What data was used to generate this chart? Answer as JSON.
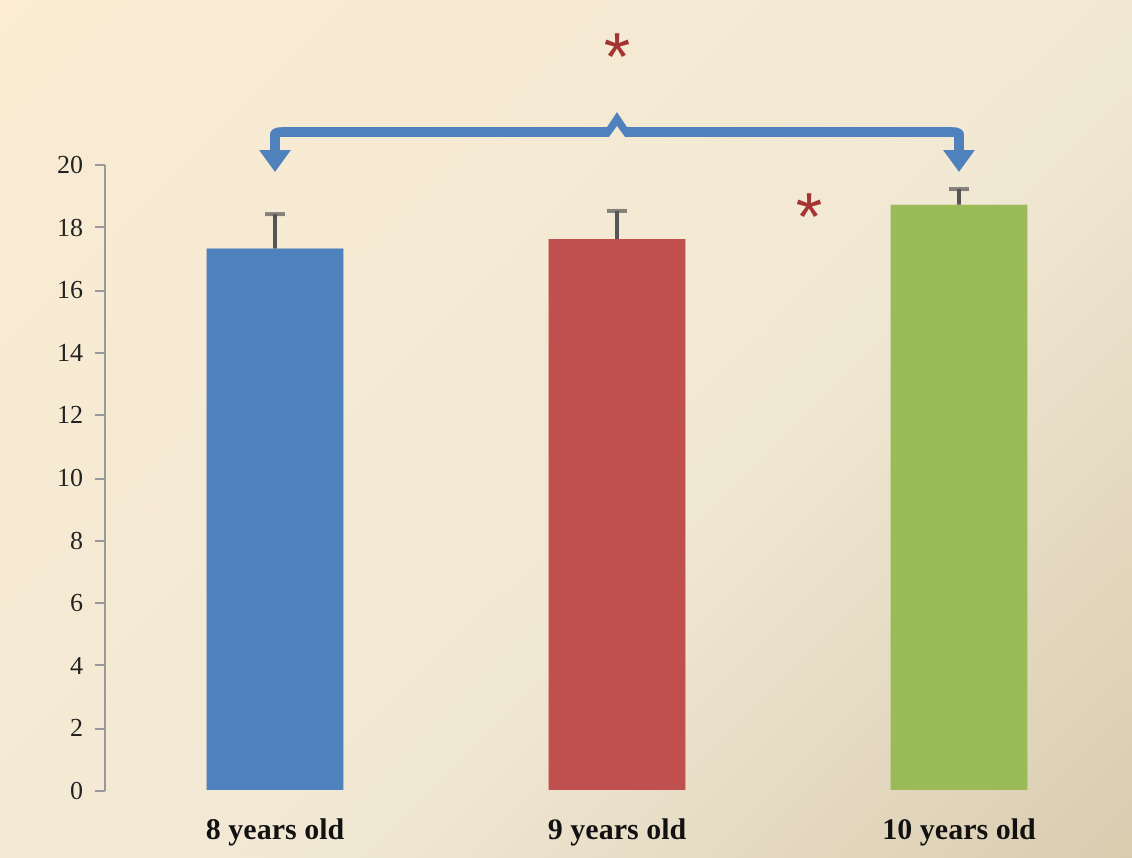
{
  "chart_data": {
    "type": "bar",
    "categories": [
      "8 years old",
      "9  years old",
      "10 years old"
    ],
    "values": [
      17.3,
      17.6,
      18.7
    ],
    "colors": [
      "#4f81bd",
      "#c0504d",
      "#9bbb59"
    ],
    "errors": [
      [
        17.3,
        18.4
      ],
      [
        17.6,
        18.5
      ],
      [
        18.7,
        19.2
      ]
    ],
    "ylim": [
      0,
      20
    ],
    "yticks": [
      0,
      2,
      4,
      6,
      8,
      10,
      12,
      14,
      16,
      18,
      20
    ],
    "annotations": [
      "*",
      "*"
    ]
  }
}
